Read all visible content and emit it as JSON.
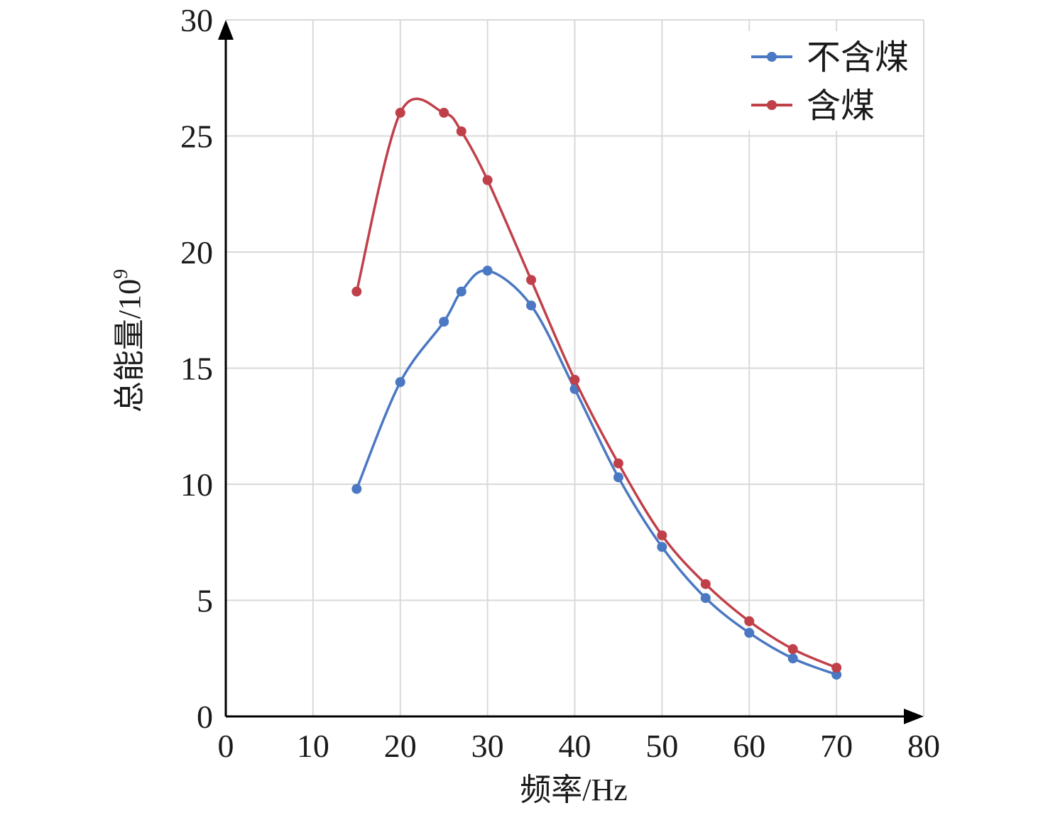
{
  "chart_data": {
    "type": "line",
    "xlabel": "频率/Hz",
    "ylabel_main": "总能量/10",
    "ylabel_sup": "9",
    "xlim": [
      0,
      80
    ],
    "ylim": [
      0,
      30
    ],
    "x_ticks": [
      "0",
      "10",
      "20",
      "30",
      "40",
      "50",
      "60",
      "70",
      "80"
    ],
    "y_ticks": [
      "0",
      "5",
      "10",
      "15",
      "20",
      "25",
      "30"
    ],
    "grid": true,
    "smooth": true,
    "legend_position": "top-right",
    "series": [
      {
        "name": "不含煤",
        "color": "#4a78c2",
        "x": [
          15,
          20,
          25,
          27,
          30,
          35,
          40,
          45,
          50,
          55,
          60,
          65,
          70
        ],
        "y": [
          9.8,
          14.4,
          17.0,
          18.3,
          19.2,
          17.7,
          14.1,
          10.3,
          7.3,
          5.1,
          3.6,
          2.5,
          1.8
        ]
      },
      {
        "name": "含煤",
        "color": "#c0404a",
        "x": [
          15,
          20,
          25,
          27,
          30,
          35,
          40,
          45,
          50,
          55,
          60,
          65,
          70
        ],
        "y": [
          18.3,
          26.0,
          26.0,
          25.2,
          23.1,
          18.8,
          14.5,
          10.9,
          7.8,
          5.7,
          4.1,
          2.9,
          2.1
        ]
      }
    ]
  }
}
